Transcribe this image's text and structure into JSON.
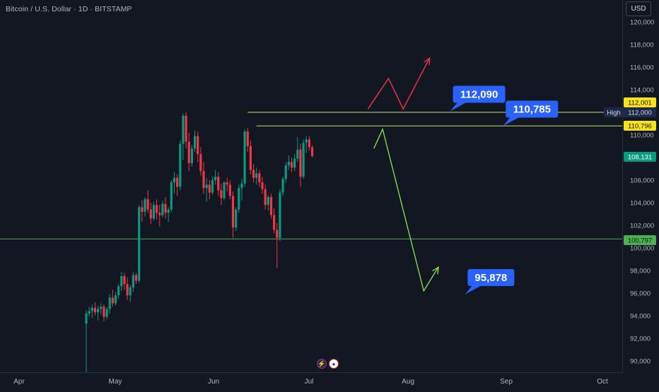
{
  "header": {
    "symbol_title": "Bitcoin / U.S. Dollar · 1D · BITSTAMP",
    "currency_button": "USD"
  },
  "colors": {
    "background": "#131722",
    "up_candle": "#089981",
    "down_candle": "#f23645",
    "callout_blue": "#2962ff",
    "high_line": "#c8d96f",
    "support_line": "#4caf50",
    "bull_arrow": "#f23645",
    "bear_arrow": "#7ed957"
  },
  "chart_data": {
    "type": "candlestick",
    "title": "Bitcoin / U.S. Dollar · 1D · BITSTAMP",
    "y_axis": {
      "ticks": [
        "120,000",
        "118,000",
        "116,000",
        "114,000",
        "112,000",
        "110,000",
        "108,000",
        "106,000",
        "104,000",
        "102,000",
        "100,000",
        "98,000",
        "96,000",
        "94,000",
        "92,000",
        "90,000"
      ],
      "range": [
        89000,
        121000
      ]
    },
    "x_axis": {
      "ticks": [
        "Apr",
        "May",
        "Jun",
        "Jul",
        "Aug",
        "Sep",
        "Oct"
      ]
    },
    "price_badges": [
      {
        "id": "badge-112001",
        "label": "112,001",
        "value": 112001,
        "style": "yellow"
      },
      {
        "id": "badge-high",
        "label": "112,000",
        "tag": "High",
        "value": 112000,
        "style": "dark"
      },
      {
        "id": "badge-110796",
        "label": "110,796",
        "value": 110796,
        "style": "yellow"
      },
      {
        "id": "badge-last",
        "label": "108,131",
        "value": 108131,
        "style": "teal"
      },
      {
        "id": "badge-100797",
        "label": "100,797",
        "value": 100797,
        "style": "green"
      }
    ],
    "horizontal_lines": [
      {
        "value": 112000,
        "start_index": 55,
        "color": "high_line"
      },
      {
        "value": 110796,
        "start_index": 58,
        "color": "high_line"
      },
      {
        "value": 100797,
        "start_index": 0,
        "color": "support_line"
      }
    ],
    "callouts": [
      {
        "label": "112,090",
        "value": 112090,
        "anchor_day": 124
      },
      {
        "label": "110,785",
        "value": 110785,
        "anchor_day": 142
      },
      {
        "label": "95,878",
        "value": 95878,
        "anchor_day": 129
      }
    ],
    "scenario_up": [
      [
        96,
        112300
      ],
      [
        103,
        115000
      ],
      [
        108,
        112300
      ],
      [
        117,
        116800
      ]
    ],
    "scenario_down": [
      [
        98,
        108800
      ],
      [
        101,
        110500
      ],
      [
        115,
        96200
      ],
      [
        120,
        98300
      ]
    ],
    "candles": [
      [
        93300,
        94500,
        93000,
        94200
      ],
      [
        94200,
        94800,
        93900,
        94400
      ],
      [
        94400,
        95000,
        93800,
        94700
      ],
      [
        94700,
        95200,
        94000,
        94300
      ],
      [
        94300,
        94900,
        93600,
        94600
      ],
      [
        94600,
        95100,
        94100,
        94800
      ],
      [
        94800,
        95000,
        93500,
        93900
      ],
      [
        93900,
        94800,
        93700,
        94600
      ],
      [
        94600,
        95900,
        94200,
        95600
      ],
      [
        95600,
        96300,
        94800,
        95100
      ],
      [
        95100,
        96100,
        94900,
        95800
      ],
      [
        95800,
        96800,
        95500,
        96600
      ],
      [
        96600,
        97900,
        96200,
        97500
      ],
      [
        97500,
        97800,
        96300,
        96800
      ],
      [
        96800,
        97400,
        95400,
        95800
      ],
      [
        95800,
        96700,
        95200,
        96500
      ],
      [
        96500,
        97900,
        96100,
        97600
      ],
      [
        97600,
        97800,
        96800,
        97100
      ],
      [
        97100,
        103800,
        96900,
        103600
      ],
      [
        103600,
        104200,
        102300,
        103200
      ],
      [
        103200,
        104500,
        102800,
        104300
      ],
      [
        104300,
        105100,
        103100,
        103400
      ],
      [
        103400,
        104000,
        102100,
        102600
      ],
      [
        102600,
        104100,
        102400,
        103800
      ],
      [
        103800,
        104300,
        102500,
        103100
      ],
      [
        103100,
        103800,
        101900,
        102900
      ],
      [
        102900,
        104200,
        102700,
        103900
      ],
      [
        103900,
        104500,
        102600,
        103100
      ],
      [
        103100,
        103600,
        102300,
        103400
      ],
      [
        103400,
        106000,
        103200,
        105800
      ],
      [
        105800,
        106700,
        104800,
        106200
      ],
      [
        106200,
        106500,
        104600,
        105400
      ],
      [
        105400,
        109500,
        105100,
        109200
      ],
      [
        109200,
        111900,
        107800,
        111700
      ],
      [
        111700,
        112000,
        108800,
        109400
      ],
      [
        109400,
        110200,
        106800,
        107500
      ],
      [
        107500,
        109100,
        107200,
        108800
      ],
      [
        108800,
        110400,
        108500,
        109900
      ],
      [
        109900,
        110300,
        107600,
        108300
      ],
      [
        108300,
        108900,
        106400,
        106800
      ],
      [
        106800,
        107600,
        104800,
        105300
      ],
      [
        105300,
        106200,
        104100,
        105600
      ],
      [
        105600,
        106000,
        104300,
        104900
      ],
      [
        104900,
        106300,
        104700,
        106000
      ],
      [
        106000,
        106900,
        105600,
        106300
      ],
      [
        106300,
        106700,
        104600,
        105100
      ],
      [
        105100,
        105700,
        103800,
        104400
      ],
      [
        104400,
        105900,
        104200,
        105800
      ],
      [
        105800,
        106200,
        105000,
        105600
      ],
      [
        105600,
        106000,
        104300,
        104600
      ],
      [
        104600,
        105000,
        100900,
        101800
      ],
      [
        101800,
        103600,
        101500,
        103400
      ],
      [
        103400,
        105600,
        103100,
        105300
      ],
      [
        105300,
        106100,
        104200,
        105700
      ],
      [
        105700,
        110500,
        105400,
        110300
      ],
      [
        110300,
        110600,
        108500,
        109000
      ],
      [
        109000,
        109500,
        106500,
        106900
      ],
      [
        106900,
        107400,
        105800,
        106200
      ],
      [
        106200,
        107100,
        105600,
        106600
      ],
      [
        106600,
        106900,
        105400,
        105800
      ],
      [
        105800,
        106300,
        104800,
        105200
      ],
      [
        105200,
        105600,
        103400,
        103800
      ],
      [
        103800,
        104700,
        103300,
        104500
      ],
      [
        104500,
        104800,
        102600,
        102900
      ],
      [
        102900,
        103500,
        101300,
        101600
      ],
      [
        101600,
        102200,
        98200,
        100900
      ],
      [
        100900,
        105200,
        100600,
        104900
      ],
      [
        104900,
        106300,
        104600,
        106100
      ],
      [
        106100,
        107600,
        105800,
        107300
      ],
      [
        107300,
        108200,
        106900,
        107600
      ],
      [
        107600,
        108000,
        106700,
        107100
      ],
      [
        107100,
        108300,
        106800,
        107900
      ],
      [
        107900,
        109800,
        107600,
        108700
      ],
      [
        108700,
        109200,
        105400,
        106300
      ],
      [
        106300,
        109600,
        106100,
        109300
      ],
      [
        109300,
        109900,
        108400,
        109600
      ],
      [
        109600,
        109900,
        108600,
        108900
      ],
      [
        108900,
        109100,
        108000,
        108131
      ]
    ]
  }
}
